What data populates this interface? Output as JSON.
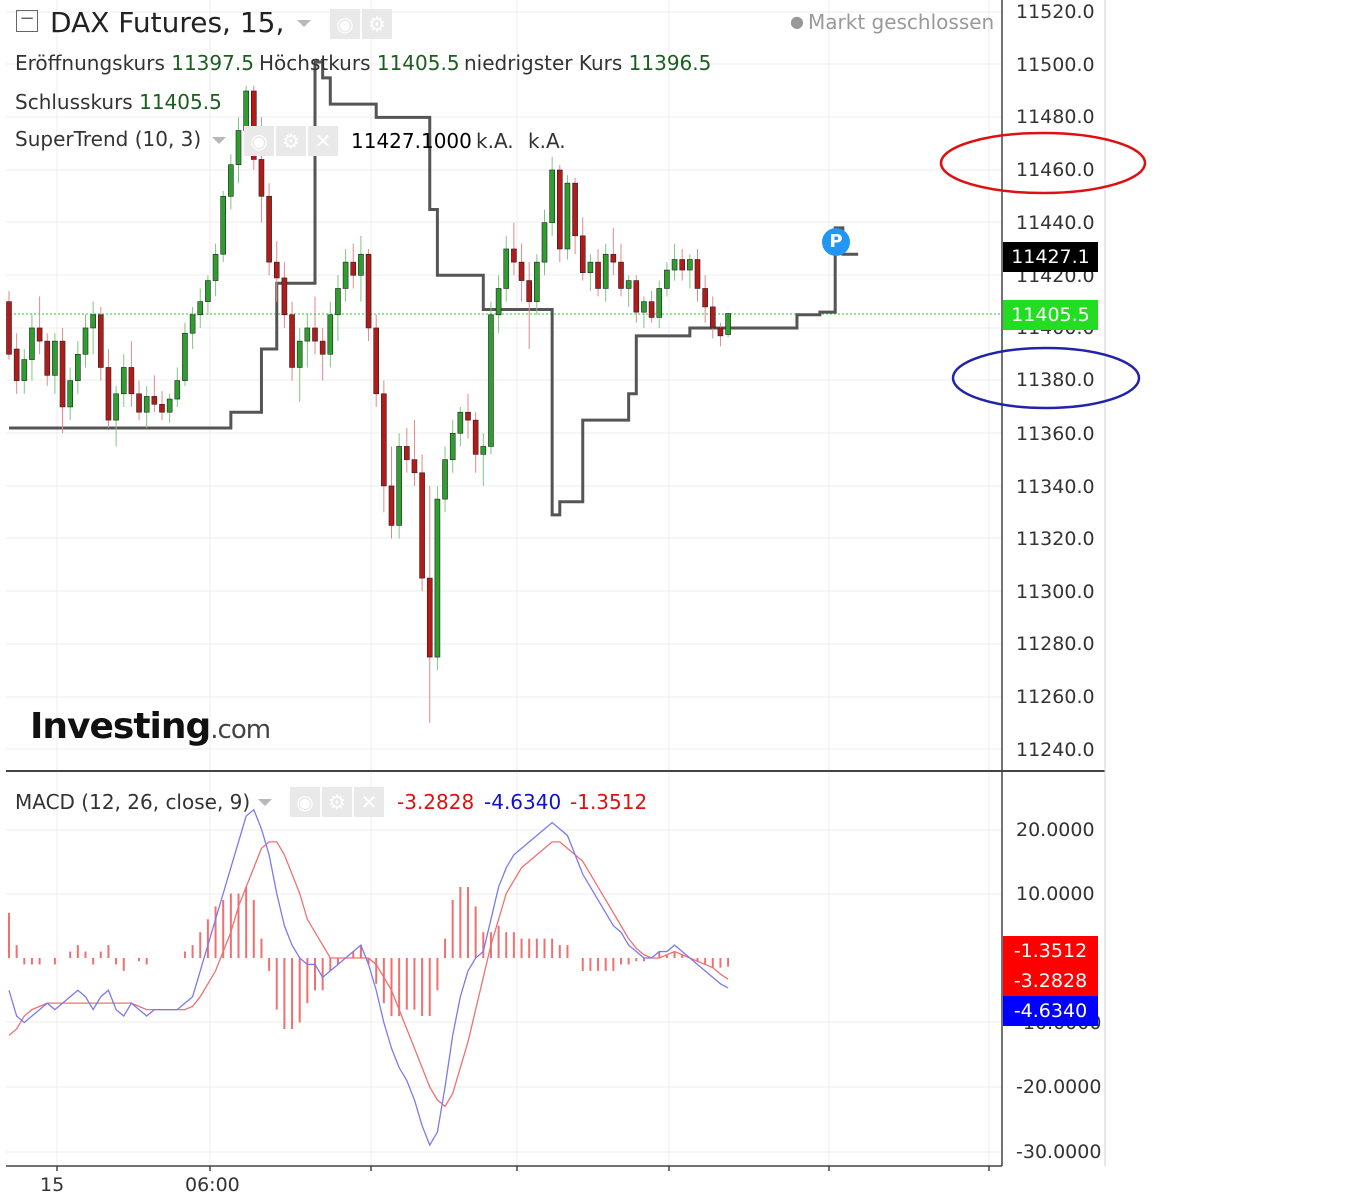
{
  "header": {
    "title": "DAX Futures, 15,",
    "market_status": "Markt geschlossen",
    "ohlc": [
      {
        "label": "Eröffnungskurs",
        "value": "11397.5"
      },
      {
        "label": "Höchstkurs",
        "value": "11405.5"
      },
      {
        "label": "niedrigster Kurs",
        "value": "11396.5"
      },
      {
        "label": "Schlusskurs",
        "value": "11405.5"
      }
    ],
    "supertrend": {
      "label": "SuperTrend (10, 3)",
      "value": "11427.1000",
      "na1": "k.A.",
      "na2": "k.A."
    }
  },
  "macd_header": {
    "label": "MACD (12, 26, close, 9)",
    "v1": "-3.2828",
    "v2": "-4.6340",
    "v3": "-1.3512"
  },
  "logo": {
    "brand": "Investing",
    "suffix": ".com"
  },
  "price_axis": {
    "ticks": [
      "11520.0",
      "11500.0",
      "11480.0",
      "11460.0",
      "11440.0",
      "11420.0",
      "11400.0",
      "11380.0",
      "11360.0",
      "11340.0",
      "11320.0",
      "11300.0",
      "11280.0",
      "11260.0",
      "11240.0"
    ],
    "tags": [
      {
        "text": "11427.1",
        "color": "#000000"
      },
      {
        "text": "11405.5",
        "color": "#22dd22"
      }
    ]
  },
  "macd_axis": {
    "ticks": [
      "20.0000",
      "10.0000",
      "-10.0000",
      "-20.0000",
      "-30.0000"
    ],
    "tags": [
      {
        "text": "-1.3512",
        "color": "#ff0000"
      },
      {
        "text": "-3.2828",
        "color": "#ff0000"
      },
      {
        "text": "-4.6340",
        "color": "#0000ff"
      }
    ]
  },
  "time_axis": {
    "labels": [
      "15",
      "06:00"
    ]
  },
  "annotations": {
    "marker": "P"
  },
  "colors": {
    "up": "#2e9e2e",
    "down": "#b31a1a",
    "supertrend": "#555555",
    "macd": "#7a7aee",
    "signal": "#f07070",
    "histogram": "#f07070",
    "annot_red": "#dd1111",
    "annot_blue": "#2222aa"
  },
  "chart_data": [
    {
      "type": "candlestick",
      "title": "DAX Futures, 15,",
      "ylim": [
        11240,
        11520
      ],
      "candles": [
        [
          11410,
          11414,
          11388,
          11390
        ],
        [
          11392,
          11398,
          11375,
          11380
        ],
        [
          11380,
          11392,
          11375,
          11388
        ],
        [
          11388,
          11405,
          11380,
          11400
        ],
        [
          11400,
          11412,
          11390,
          11395
        ],
        [
          11395,
          11398,
          11378,
          11382
        ],
        [
          11382,
          11398,
          11375,
          11395
        ],
        [
          11395,
          11400,
          11360,
          11370
        ],
        [
          11370,
          11385,
          11365,
          11380
        ],
        [
          11380,
          11395,
          11375,
          11390
        ],
        [
          11390,
          11405,
          11385,
          11400
        ],
        [
          11400,
          11410,
          11390,
          11405
        ],
        [
          11405,
          11408,
          11380,
          11385
        ],
        [
          11385,
          11392,
          11362,
          11365
        ],
        [
          11365,
          11378,
          11355,
          11375
        ],
        [
          11375,
          11390,
          11370,
          11385
        ],
        [
          11385,
          11395,
          11370,
          11375
        ],
        [
          11375,
          11380,
          11365,
          11368
        ],
        [
          11368,
          11378,
          11362,
          11374
        ],
        [
          11374,
          11382,
          11368,
          11371
        ],
        [
          11371,
          11376,
          11365,
          11368
        ],
        [
          11368,
          11375,
          11364,
          11373
        ],
        [
          11373,
          11385,
          11370,
          11380
        ],
        [
          11380,
          11402,
          11378,
          11398
        ],
        [
          11398,
          11408,
          11392,
          11405
        ],
        [
          11405,
          11415,
          11400,
          11410
        ],
        [
          11410,
          11420,
          11405,
          11418
        ],
        [
          11418,
          11432,
          11412,
          11428
        ],
        [
          11428,
          11452,
          11425,
          11450
        ],
        [
          11450,
          11466,
          11445,
          11462
        ],
        [
          11462,
          11480,
          11455,
          11475
        ],
        [
          11475,
          11492,
          11468,
          11490
        ],
        [
          11490,
          11492,
          11460,
          11464
        ],
        [
          11464,
          11480,
          11440,
          11450
        ],
        [
          11450,
          11455,
          11420,
          11425
        ],
        [
          11425,
          11433,
          11410,
          11419
        ],
        [
          11419,
          11425,
          11400,
          11405
        ],
        [
          11405,
          11410,
          11380,
          11385
        ],
        [
          11385,
          11400,
          11372,
          11395
        ],
        [
          11395,
          11405,
          11385,
          11400
        ],
        [
          11400,
          11412,
          11390,
          11395
        ],
        [
          11395,
          11400,
          11380,
          11390
        ],
        [
          11390,
          11410,
          11385,
          11405
        ],
        [
          11405,
          11420,
          11395,
          11415
        ],
        [
          11415,
          11430,
          11410,
          11425
        ],
        [
          11425,
          11432,
          11415,
          11420
        ],
        [
          11420,
          11435,
          11410,
          11428
        ],
        [
          11428,
          11430,
          11395,
          11400
        ],
        [
          11400,
          11405,
          11370,
          11375
        ],
        [
          11375,
          11380,
          11330,
          11340
        ],
        [
          11340,
          11355,
          11320,
          11325
        ],
        [
          11325,
          11360,
          11320,
          11355
        ],
        [
          11355,
          11362,
          11345,
          11350
        ],
        [
          11350,
          11365,
          11340,
          11345
        ],
        [
          11345,
          11352,
          11300,
          11305
        ],
        [
          11305,
          11340,
          11250,
          11275
        ],
        [
          11275,
          11340,
          11270,
          11335
        ],
        [
          11335,
          11355,
          11330,
          11350
        ],
        [
          11350,
          11365,
          11345,
          11360
        ],
        [
          11360,
          11370,
          11355,
          11368
        ],
        [
          11368,
          11375,
          11358,
          11365
        ],
        [
          11365,
          11368,
          11345,
          11352
        ],
        [
          11352,
          11360,
          11340,
          11355
        ],
        [
          11355,
          11410,
          11352,
          11405
        ],
        [
          11405,
          11420,
          11398,
          11415
        ],
        [
          11415,
          11435,
          11410,
          11430
        ],
        [
          11430,
          11440,
          11420,
          11425
        ],
        [
          11425,
          11432,
          11410,
          11418
        ],
        [
          11418,
          11425,
          11392,
          11410
        ],
        [
          11410,
          11428,
          11405,
          11425
        ],
        [
          11425,
          11445,
          11420,
          11440
        ],
        [
          11440,
          11465,
          11435,
          11460
        ],
        [
          11460,
          11462,
          11425,
          11430
        ],
        [
          11430,
          11458,
          11426,
          11455
        ],
        [
          11455,
          11457,
          11428,
          11435
        ],
        [
          11435,
          11442,
          11418,
          11421
        ],
        [
          11421,
          11428,
          11414,
          11425
        ],
        [
          11425,
          11430,
          11412,
          11415
        ],
        [
          11415,
          11432,
          11410,
          11428
        ],
        [
          11428,
          11438,
          11420,
          11425
        ],
        [
          11425,
          11432,
          11412,
          11415
        ],
        [
          11415,
          11420,
          11408,
          11418
        ],
        [
          11418,
          11420,
          11402,
          11406
        ],
        [
          11406,
          11412,
          11400,
          11410
        ],
        [
          11410,
          11414,
          11402,
          11404
        ],
        [
          11404,
          11418,
          11400,
          11415
        ],
        [
          11415,
          11425,
          11412,
          11422
        ],
        [
          11422,
          11432,
          11418,
          11426
        ],
        [
          11426,
          11430,
          11418,
          11422
        ],
        [
          11422,
          11428,
          11415,
          11426
        ],
        [
          11426,
          11430,
          11410,
          11415
        ],
        [
          11415,
          11420,
          11402,
          11408
        ],
        [
          11408,
          11412,
          11396,
          11400
        ],
        [
          11400,
          11402,
          11393,
          11397
        ],
        [
          11397.5,
          11405.5,
          11396.5,
          11405.5
        ]
      ],
      "supertrend": [
        [
          0,
          11362
        ],
        [
          26,
          11362
        ],
        [
          29,
          11368
        ],
        [
          33,
          11392
        ],
        [
          35,
          11417
        ],
        [
          38,
          11417
        ],
        [
          40,
          11501
        ],
        [
          41,
          11495
        ],
        [
          42,
          11485
        ],
        [
          46,
          11485
        ],
        [
          48,
          11480
        ],
        [
          53,
          11480
        ],
        [
          55,
          11445
        ],
        [
          56,
          11420
        ],
        [
          61,
          11420
        ],
        [
          62,
          11407
        ],
        [
          70,
          11407
        ],
        [
          71,
          11329
        ],
        [
          72,
          11334
        ],
        [
          75,
          11365
        ],
        [
          80,
          11365
        ],
        [
          81,
          11375
        ],
        [
          82,
          11397
        ],
        [
          88,
          11397
        ],
        [
          89,
          11400
        ],
        [
          101,
          11400
        ],
        [
          103,
          11405
        ],
        [
          106,
          11406
        ],
        [
          107,
          11406
        ],
        [
          108,
          11438
        ],
        [
          109,
          11428
        ],
        [
          111,
          11428
        ]
      ],
      "last_close": 11405.5
    },
    {
      "type": "macd",
      "title": "MACD (12, 26, close, 9)",
      "ylim": [
        -30,
        20
      ],
      "macd": [
        -5,
        -9,
        -10,
        -9,
        -8,
        -7,
        -8,
        -7,
        -6,
        -5,
        -6,
        -8,
        -6,
        -5,
        -8,
        -9,
        -7,
        -8,
        -9,
        -8,
        -8,
        -8,
        -8,
        -7,
        -6,
        -2,
        2,
        6,
        10,
        14,
        18,
        22,
        23,
        20,
        16,
        10,
        5,
        2,
        0,
        -1,
        -1,
        -3,
        -2,
        -1,
        0,
        1,
        2,
        -1,
        -5,
        -10,
        -14,
        -17,
        -19,
        -22,
        -26,
        -29,
        -27,
        -20,
        -12,
        -6,
        -2,
        0,
        1,
        6,
        11,
        14,
        16,
        17,
        18,
        19,
        20,
        21,
        20,
        19,
        16,
        13,
        11,
        9,
        7,
        5,
        4,
        2,
        1,
        0,
        0,
        1,
        1,
        2,
        1,
        0,
        -1,
        -2,
        -3,
        -4,
        -4.634
      ],
      "signal": [
        -12,
        -11,
        -9,
        -8,
        -7.5,
        -7,
        -7,
        -7,
        -7,
        -7,
        -7,
        -7,
        -7,
        -7,
        -7,
        -7,
        -7,
        -7.5,
        -8,
        -8,
        -8,
        -8,
        -8,
        -8,
        -7.5,
        -6,
        -4,
        -2,
        1,
        4,
        8,
        11,
        14,
        17,
        18,
        18,
        16,
        13,
        10,
        6,
        4,
        2,
        0,
        0,
        0,
        0,
        0,
        0,
        -1,
        -3,
        -5,
        -8,
        -11,
        -14,
        -17,
        -20,
        -22,
        -23,
        -21,
        -17,
        -13,
        -8,
        -3,
        2,
        6,
        10,
        12,
        14,
        15,
        16,
        17,
        18,
        18,
        17,
        16,
        15,
        13,
        11,
        9,
        7,
        5,
        3,
        1.5,
        0.5,
        0,
        0,
        0.5,
        1,
        0.5,
        0,
        -0.5,
        -1,
        -1.5,
        -2.5,
        -3.2828
      ],
      "histogram": [
        7,
        2,
        -1,
        -1,
        -1,
        0,
        -1,
        0,
        1,
        2,
        1,
        -1,
        1,
        2,
        -1,
        -2,
        0,
        -0.5,
        -1,
        0,
        0,
        0,
        0,
        1,
        2,
        4,
        6,
        8,
        9,
        10,
        10,
        11,
        9,
        3,
        -2,
        -8,
        -11,
        -11,
        -10,
        -7,
        -5,
        -5,
        -2,
        -1,
        0,
        1,
        2,
        -1,
        -4,
        -7,
        -9,
        -9,
        -8,
        -8,
        -9,
        -9,
        -5,
        3,
        9,
        11,
        11,
        8,
        4,
        4,
        5,
        4,
        4,
        3,
        3,
        3,
        3,
        3,
        2,
        2,
        0,
        -2,
        -2,
        -2,
        -2,
        -2,
        -1,
        -1,
        -0.5,
        -0.5,
        0,
        1,
        0.5,
        1,
        0.5,
        0,
        -0.5,
        -1,
        -1.5,
        -1.5,
        -1.3512
      ]
    }
  ]
}
